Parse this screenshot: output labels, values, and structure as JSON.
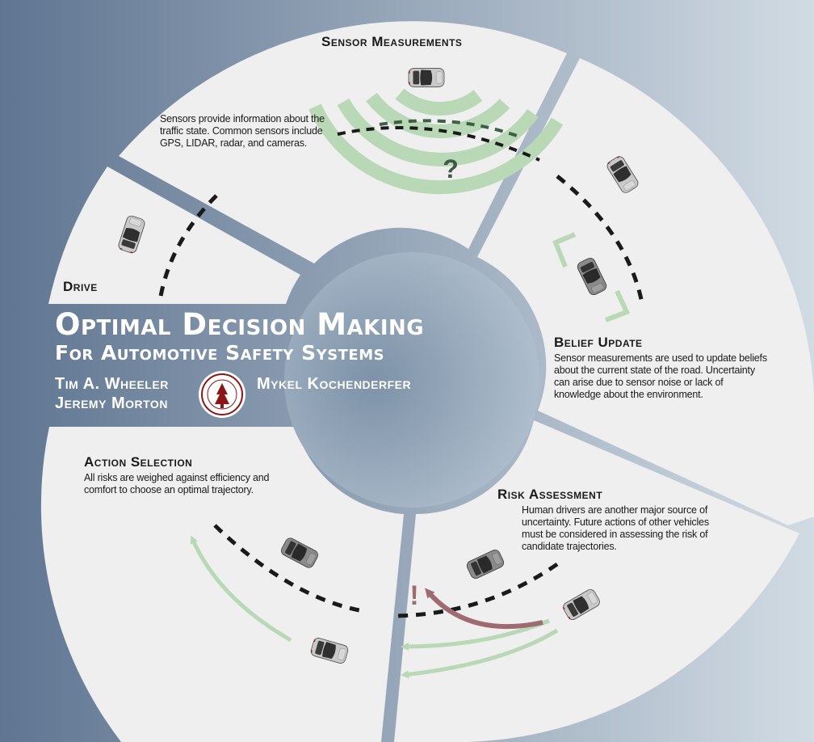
{
  "title": {
    "line1": "Optimal Decision Making",
    "line2": "For Automotive Safety Systems"
  },
  "authors": {
    "left_1": "Tim A. Wheeler",
    "left_2": "Jeremy Morton",
    "right_1": "Mykel Kochenderfer"
  },
  "stages": {
    "sensor": {
      "heading": "Sensor Measurements",
      "description": "Sensors provide information about the traffic state. Common sensors include GPS, LIDAR, radar, and cameras.",
      "uncertainty_symbol": "?"
    },
    "belief": {
      "heading": "Belief Update",
      "description": "Sensor measurements are used to update beliefs about the current state of the road. Uncertainty can arise due to sensor noise or lack of knowledge about the environment."
    },
    "risk": {
      "heading": "Risk Assessment",
      "description": "Human drivers are another major source of uncertainty. Future actions of other vehicles must be considered in assessing the risk of candidate trajectories.",
      "warning_symbol": "!"
    },
    "action": {
      "heading": "Action Selection",
      "description": "All risks are weighed against efficiency and comfort to choose an optimal trajectory."
    },
    "drive": {
      "heading": "Drive"
    }
  },
  "colors": {
    "background_left": "#5f7591",
    "background_right": "#d1dbe3",
    "segment_fill": "#efeff0",
    "hub_fill": "#8c9fb3",
    "trajectory_green": "#b9d8b6",
    "risk_trajectory": "#9e6b73",
    "car_light": "#c8c8c8",
    "car_dark": "#777777"
  },
  "icons": {
    "seal": "university-seal-icon",
    "car": "car-icon"
  }
}
